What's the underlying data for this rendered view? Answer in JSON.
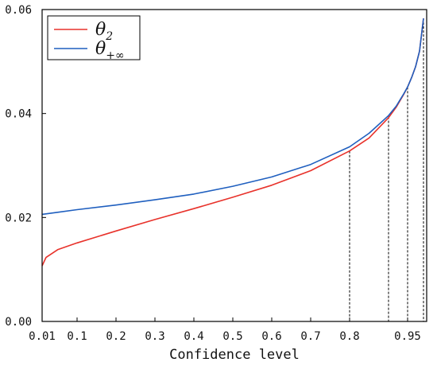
{
  "chart_data": {
    "type": "line",
    "xlabel": "Confidence level",
    "ylabel": "",
    "title": "",
    "ylim": [
      0,
      0.06
    ],
    "x_ticks": [
      {
        "value": 0.01,
        "label": "0.01"
      },
      {
        "value": 0.1,
        "label": "0.1"
      },
      {
        "value": 0.2,
        "label": "0.2"
      },
      {
        "value": 0.3,
        "label": "0.3"
      },
      {
        "value": 0.4,
        "label": "0.4"
      },
      {
        "value": 0.5,
        "label": "0.5"
      },
      {
        "value": 0.6,
        "label": "0.6"
      },
      {
        "value": 0.7,
        "label": "0.7"
      },
      {
        "value": 0.8,
        "label": "0.8"
      },
      {
        "value": 0.95,
        "label": "0.95"
      }
    ],
    "y_ticks": [
      {
        "value": 0.0,
        "label": "0.00"
      },
      {
        "value": 0.02,
        "label": "0.02"
      },
      {
        "value": 0.04,
        "label": "0.04"
      },
      {
        "value": 0.06,
        "label": "0.06"
      }
    ],
    "legend": {
      "placement": "top-left",
      "entries": [
        {
          "symbol": "θ",
          "subscript": "2",
          "color": "#e8322b"
        },
        {
          "symbol": "θ",
          "subscript": "+∞",
          "color": "#1f5fbf"
        }
      ]
    },
    "grid": false,
    "series": [
      {
        "key": "theta_2",
        "color": "#e8322b",
        "x": [
          0.01,
          0.02,
          0.05,
          0.1,
          0.2,
          0.3,
          0.4,
          0.5,
          0.6,
          0.7,
          0.8,
          0.85,
          0.9,
          0.92,
          0.94,
          0.95,
          0.96,
          0.97,
          0.98,
          0.99
        ],
        "y": [
          0.0107,
          0.0123,
          0.0138,
          0.0151,
          0.0174,
          0.0196,
          0.0217,
          0.0239,
          0.0262,
          0.029,
          0.0328,
          0.0353,
          0.0392,
          0.0412,
          0.0437,
          0.0451,
          0.0469,
          0.049,
          0.052,
          0.0583
        ]
      },
      {
        "key": "theta_inf",
        "color": "#1f5fbf",
        "x": [
          0.01,
          0.05,
          0.1,
          0.2,
          0.3,
          0.4,
          0.5,
          0.6,
          0.7,
          0.8,
          0.85,
          0.9,
          0.92,
          0.94,
          0.95,
          0.96,
          0.97,
          0.98,
          0.99
        ],
        "y": [
          0.0206,
          0.021,
          0.0215,
          0.0224,
          0.0234,
          0.0245,
          0.026,
          0.0278,
          0.0302,
          0.0336,
          0.0362,
          0.0396,
          0.0414,
          0.0438,
          0.0451,
          0.0469,
          0.049,
          0.052,
          0.0583
        ]
      }
    ],
    "reference_lines": [
      {
        "x": 0.8,
        "y": 0.0328
      },
      {
        "x": 0.9,
        "y": 0.0394
      },
      {
        "x": 0.95,
        "y": 0.0451
      },
      {
        "x": 0.99,
        "y": 0.0583
      }
    ]
  }
}
